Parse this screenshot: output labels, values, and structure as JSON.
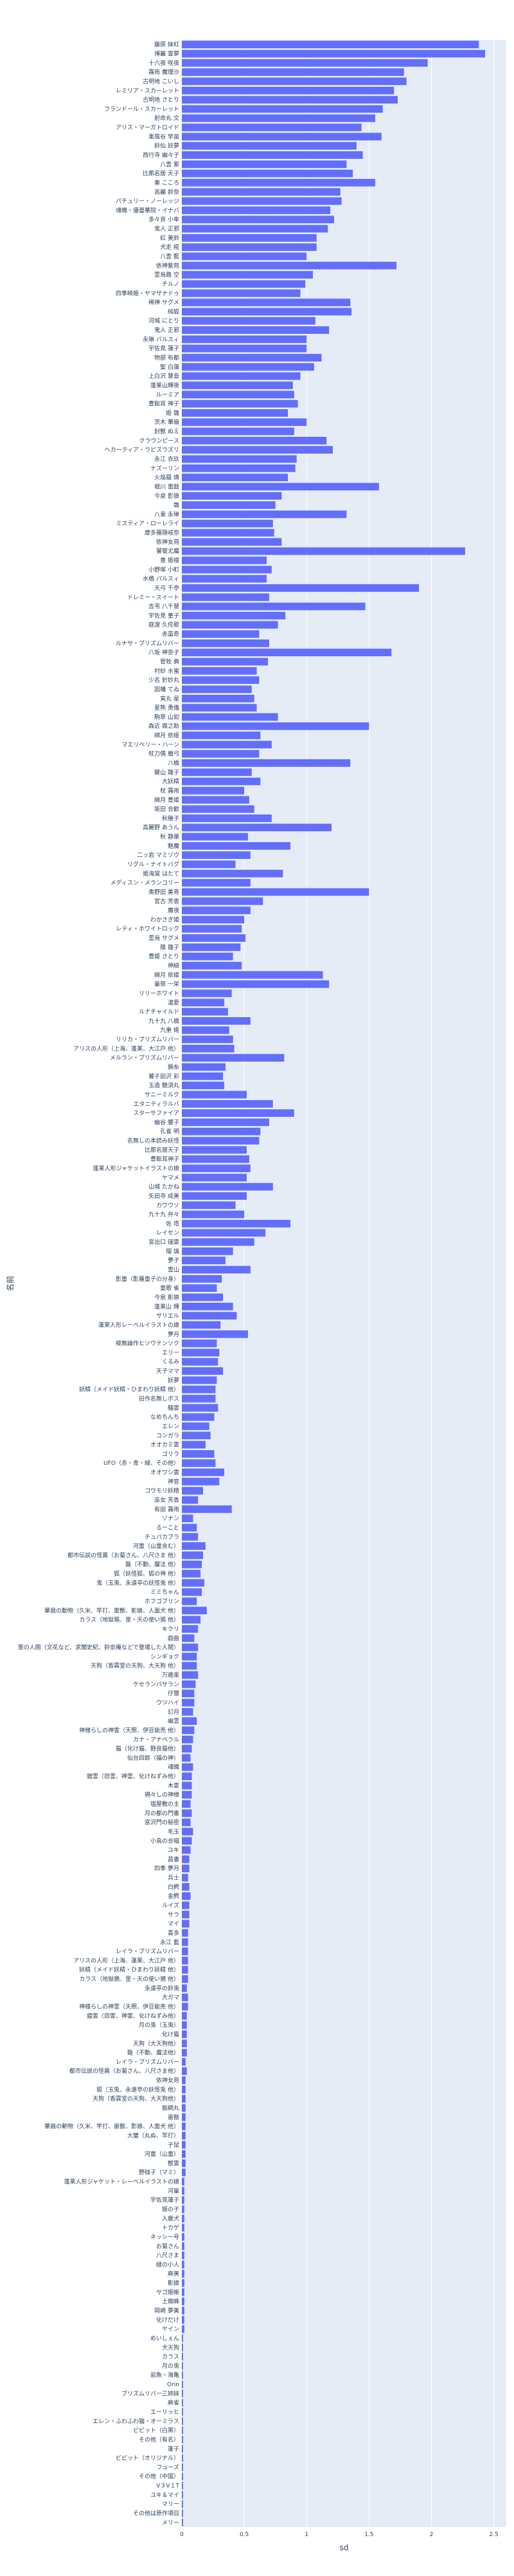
{
  "chart_data": {
    "type": "bar",
    "orientation": "horizontal",
    "xlabel": "sd",
    "ylabel": "名前",
    "xlim": [
      0,
      2.6
    ],
    "xticks": [
      0,
      0.5,
      1,
      1.5,
      2,
      2.5
    ],
    "grid": true,
    "colors": {
      "bar": "#636efa",
      "plot_bg": "#e5ecf6",
      "grid": "#ffffff",
      "text": "#2a3f5f"
    },
    "categories": [
      "藤原 妹紅",
      "博麗 霊夢",
      "十六夜 咲夜",
      "霧雨 魔理沙",
      "古明地 こいし",
      "レミリア・スカーレット",
      "古明地 さとり",
      "フランドール・スカーレット",
      "射命丸 文",
      "アリス・マーガトロイド",
      "東風谷 早苗",
      "鈴仙 妖夢",
      "西行寺 幽々子",
      "八雲 紫",
      "比那名居 天子",
      "秦 こころ",
      "高麗 鈴奈",
      "パチュリー・ノーレッジ",
      "魂魄・優曇華院・イナバ",
      "多々良 小傘",
      "鬼人 正邪",
      "紅 美鈴",
      "犬走 椛",
      "八雲 藍",
      "依神紫苑",
      "霊烏路 空",
      "チルノ",
      "四季映姫・ヤマザナドゥ",
      "稀神 サグメ",
      "純狐",
      "河城 にとり",
      "鬼人 正邪",
      "永琳 バルスィ",
      "宇佐見 蓮子",
      "物部 布都",
      "聖 白蓮",
      "上白沢 慧音",
      "蓬莱山輝夜",
      "ルーミア",
      "豊聡耳 神子",
      "姫 雛",
      "茨木 華扇",
      "封獣 ぬえ",
      "クラウンピース",
      "ヘカーティア・ラピスラズリ",
      "永江 衣玖",
      "ナズーリン",
      "火焔猫 燐",
      "堀川 雷鼓",
      "今泉 影狼",
      "雛",
      "八意 永琳",
      "ミスティア・ローレライ",
      "摩多羅隠岐奈",
      "依神女苑",
      "饕餮尤魔",
      "豊 姫様",
      "小野塚 小町",
      "水橋 パルスィ",
      "天弓 千亭",
      "ドレミー・スイート",
      "吉弔 八千慧",
      "宇佐見 菫子",
      "庭渡 久侘歌",
      "赤蛮奇",
      "ルナサ・プリズムリバー",
      "八坂 神奈子",
      "菅牧 典",
      "村紗 水蜜",
      "少名 針妙丸",
      "因幡 てゐ",
      "寅丸 星",
      "星熊 勇儀",
      "駒草 山如",
      "森近 霖之助",
      "綿月 依姫",
      "マエリベリー・ハーン",
      "杖刀偶 磨弓",
      "八橋",
      "鍵山 雛子",
      "大妖精",
      "杖 霧雨",
      "綿月 豊姫",
      "坂田 合歓",
      "秋穣子",
      "高麗野 あうん",
      "秋 静葉",
      "魅魔",
      "二ッ岩 マミゾウ",
      "リグル・ナイトバグ",
      "姫海棠 はたて",
      "メディスン・メランコリー",
      "奥野田 美宵",
      "宮古 芳香",
      "魔夜",
      "わかさぎ姫",
      "レティ・ホワイトロック",
      "霊烏 サグメ",
      "陽 雛子",
      "豊姫 さとり",
      "神綺",
      "綿月 依姫",
      "童祭 一栄",
      "リリーホワイト",
      "湯愛",
      "ルナチャイルド",
      "九十九 八橋",
      "九重 姫",
      "リリカ・プリズムリバー",
      "アリスの人形（上海、蓬莱、大江戸 他）",
      "メルラン・プリズムリバー",
      "錦糸",
      "饕子田沢 彩",
      "玉造 魅須丸",
      "サニーミルク",
      "エタニティラルバ",
      "スターサファイア",
      "幽谷 響子",
      "孔雀 明",
      "名無しの本読み妖怪",
      "比那名居天子",
      "豊聡耳神子",
      "蓬莱人形ジャケットイラストの娘",
      "ヤマメ",
      "山城 たかね",
      "矢田寺 成美",
      "カワウソ",
      "九十九 弁々",
      "佐 塔",
      "レイセン",
      "宮出口 瑞霊",
      "瑠 璃",
      "夢子",
      "雲山",
      "影童（影羅童子の分身）",
      "童歌 雀",
      "今泉 影狼",
      "蓬莱山 輝",
      "サリエル",
      "蓬莱人形レーベルイラストの娘",
      "夢月",
      "検無論作ヒソウテンソク",
      "エリー",
      "くるみ",
      "天子ママ",
      "妖夢",
      "妖精（メイド妖精・ひまわり妖精 他）",
      "旧作名無しボス",
      "騒霊",
      "なめちんち",
      "エレン",
      "コンガラ",
      "オオカミ霊",
      "ゴリラ",
      "UFO（赤・青・緑、その他）",
      "オオワシ霊",
      "神官",
      "コウモリ妖精",
      "巫女 芳香",
      "有田 霧雨",
      "ゾナン",
      "るーこと",
      "チュパカブラ",
      "河童（山童含む）",
      "都市伝説の怪異（お菊さん、八尺さま 他）",
      "龍（不動、魔法 他）",
      "狐（妖怪狐、狐の神 他）",
      "鬼（玉兎、永遠亭の妖怪兎 他）",
      "ミミちゃん",
      "ホフゴブリン",
      "華扇の動物（久米、竿打、雷獣、影娘、人面犬 他）",
      "カラス（地獄鴉、里・天の使い鴉 他）",
      "キクリ",
      "戯曲",
      "里の人間（文花など、求聞史紀、鈴奈庵などで登場した人間）",
      "シンギョク",
      "天狗（香霖堂の天狗、大天狗 他）",
      "万歳楽",
      "ケセランパサラン",
      "仔狸",
      "ウツハイ",
      "幻月",
      "幽霊",
      "神様らしの神霊（天照、伊豆能売 他）",
      "カナ・アナベラル",
      "猫（化け猫、野良猫他）",
      "仙台四郎（福の神）",
      "魂魄",
      "鎧霊（怨霊、神霊、化けねずみ他）",
      "木霊",
      "禍々しの神様",
      "塩屋敷の主",
      "月の都の門番",
      "宮沢門の秘密",
      "毛玉",
      "小鳥の合唱",
      "ユキ",
      "昌書",
      "四季 夢月",
      "兵士",
      "白鰐",
      "金鰐",
      "ルイズ",
      "サラ",
      "マイ",
      "喜多",
      "永江 藍",
      "レイラ・プリズムリバー",
      "アリスの人形（上海、蓬莱、大江戸 他）",
      "妖精（メイド妖精・ひまわり妖精 他）",
      "カラス（地獄鴉、里・天の使い鴉 他）",
      "永遠亭の鈴兎",
      "大ガマ",
      "神様らしの神霊（天照、伊豆能売 他）",
      "鎧霊（怨霊、神霊、化けねずみ他）",
      "月の兎（玉兎）",
      "化け猫",
      "天狗（大天狗他）",
      "龍（不動、魔法他）",
      "レイラ・プリズムリバー",
      "都市伝説の怪異（お菊さん、八尺さま他）",
      "依神女苑",
      "狐（玉兎、永遠亭の妖怪兎 他）",
      "天狗（香霖堂の天狗、大天狗他）",
      "飯綱丸",
      "雷獣",
      "華扇の動物（久米、竿打、雷獣、影娘、人面犬 他）",
      "大蟹（丸ぬ、竿打）",
      "子鼠",
      "河童（山童）",
      "獣霊",
      "野槌子（マミ）",
      "蓬莱人形ジャケット・レーベルイラストの娘",
      "河童",
      "宇佐見蓮子",
      "姫の子",
      "入鹿犬",
      "トカゲ",
      "ネッシー号",
      "お菊さん",
      "八尺さま",
      "緑の小人",
      "麻美",
      "影娘",
      "サゴ姫帳",
      "土蜘蛛",
      "岡崎 夢美",
      "化けだけ",
      "ヤイン",
      "めいしぇん",
      "犬天狗",
      "カラス",
      "月の兎",
      "岩魚・海亀",
      "Orin",
      "プリズムリバー三姉妹",
      "麻雀",
      "エーリッヒ",
      "エレン・ふわふわ猫・オーミラス",
      "ビビット（白黒）",
      "その他（有名）",
      "蓬子",
      "ビビット（オリジナル）",
      "フューズ",
      "その他（中国）",
      "V３V１T",
      "ユキ＆マイ",
      "マリー",
      "その他は原作項目",
      "メリー"
    ],
    "values": [
      2.38,
      2.43,
      1.97,
      1.78,
      1.8,
      1.7,
      1.73,
      1.61,
      1.55,
      1.44,
      1.6,
      1.4,
      1.45,
      1.32,
      1.37,
      1.55,
      1.27,
      1.28,
      1.19,
      1.22,
      1.17,
      1.08,
      1.08,
      1.0,
      1.72,
      1.05,
      0.99,
      0.95,
      1.35,
      1.36,
      1.07,
      1.18,
      1.0,
      1.0,
      1.12,
      1.06,
      0.95,
      0.89,
      0.9,
      0.93,
      0.85,
      1.0,
      0.9,
      1.16,
      1.21,
      0.92,
      0.91,
      0.85,
      1.58,
      0.8,
      0.75,
      1.32,
      0.73,
      0.74,
      0.8,
      2.27,
      0.68,
      0.72,
      0.68,
      1.9,
      0.7,
      1.47,
      0.83,
      0.77,
      0.62,
      0.7,
      1.68,
      0.69,
      0.6,
      0.62,
      0.56,
      0.58,
      0.6,
      0.77,
      1.5,
      0.63,
      0.72,
      0.62,
      1.35,
      0.56,
      0.63,
      0.5,
      0.54,
      0.58,
      0.72,
      1.2,
      0.53,
      0.87,
      0.55,
      0.43,
      0.81,
      0.55,
      1.5,
      0.65,
      0.55,
      0.5,
      0.48,
      0.51,
      0.47,
      0.41,
      0.48,
      1.13,
      1.18,
      0.4,
      0.34,
      0.37,
      0.55,
      0.38,
      0.41,
      0.42,
      0.82,
      0.35,
      0.33,
      0.34,
      0.52,
      0.73,
      0.9,
      0.7,
      0.63,
      0.62,
      0.52,
      0.54,
      0.55,
      0.52,
      0.73,
      0.52,
      0.43,
      0.5,
      0.87,
      0.67,
      0.58,
      0.41,
      0.35,
      0.55,
      0.32,
      0.28,
      0.33,
      0.41,
      0.44,
      0.31,
      0.53,
      0.28,
      0.3,
      0.29,
      0.33,
      0.28,
      0.27,
      0.27,
      0.29,
      0.26,
      0.22,
      0.23,
      0.19,
      0.26,
      0.27,
      0.34,
      0.3,
      0.17,
      0.13,
      0.4,
      0.09,
      0.12,
      0.13,
      0.19,
      0.17,
      0.16,
      0.15,
      0.18,
      0.16,
      0.12,
      0.2,
      0.15,
      0.13,
      0.1,
      0.13,
      0.12,
      0.12,
      0.13,
      0.11,
      0.1,
      0.1,
      0.09,
      0.12,
      0.1,
      0.09,
      0.08,
      0.07,
      0.09,
      0.08,
      0.08,
      0.08,
      0.07,
      0.08,
      0.07,
      0.09,
      0.08,
      0.07,
      0.06,
      0.06,
      0.05,
      0.06,
      0.07,
      0.06,
      0.06,
      0.06,
      0.05,
      0.05,
      0.05,
      0.05,
      0.05,
      0.05,
      0.04,
      0.05,
      0.05,
      0.04,
      0.04,
      0.04,
      0.04,
      0.04,
      0.03,
      0.04,
      0.03,
      0.03,
      0.03,
      0.03,
      0.03,
      0.03,
      0.03,
      0.03,
      0.03,
      0.03,
      0.03,
      0.02,
      0.02,
      0.02,
      0.02,
      0.02,
      0.02,
      0.02,
      0.02,
      0.02,
      0.02,
      0.02,
      0.02,
      0.02,
      0.02,
      0.02,
      0.02,
      0.02,
      0.01,
      0.01,
      0.01,
      0.01,
      0.01,
      0.01,
      0.01,
      0.01,
      0.01,
      0.01,
      0.01,
      0.01,
      0.01,
      0.01,
      0.01,
      0.01,
      0.01,
      0.01,
      0.01,
      0.01,
      0.01
    ]
  }
}
